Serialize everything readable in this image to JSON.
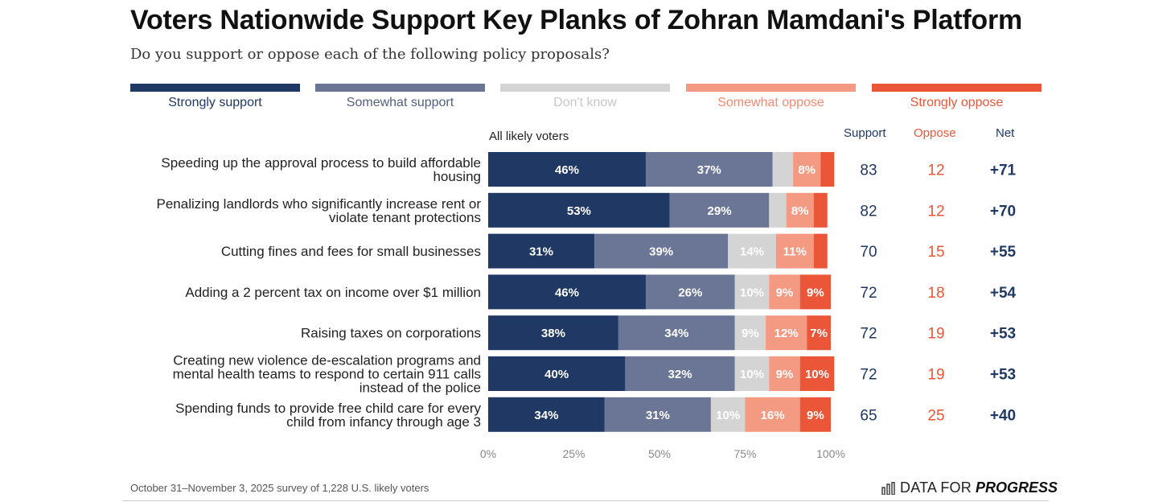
{
  "chart_data": {
    "type": "bar",
    "orientation": "horizontal",
    "stacked": true,
    "title": "Voters Nationwide Support Key Planks of Zohran Mamdani's Platform",
    "subtitle": "Do you support or oppose each of the following policy proposals?",
    "bar_group_label": "All likely voters",
    "series": [
      {
        "name": "Strongly support",
        "color": "#1f3864",
        "label_color": "#1f3864",
        "text_color": "#ffffff",
        "values": [
          46,
          53,
          31,
          46,
          38,
          40,
          34
        ],
        "labels": [
          "46%",
          "53%",
          "31%",
          "46%",
          "38%",
          "40%",
          "34%"
        ]
      },
      {
        "name": "Somewhat support",
        "color": "#6b7696",
        "label_color": "#55607f",
        "text_color": "#ffffff",
        "values": [
          37,
          29,
          39,
          26,
          34,
          32,
          31
        ],
        "labels": [
          "37%",
          "29%",
          "39%",
          "26%",
          "34%",
          "32%",
          "31%"
        ]
      },
      {
        "name": "Don't know",
        "color": "#d4d4d4",
        "label_color": "#c8c8c8",
        "text_color": "#ffffff",
        "values": [
          6,
          5,
          14,
          10,
          9,
          10,
          10
        ],
        "labels": [
          "",
          "",
          "14%",
          "10%",
          "9%",
          "10%",
          "10%"
        ]
      },
      {
        "name": "Somewhat oppose",
        "color": "#f59a82",
        "label_color": "#f4896f",
        "text_color": "#ffffff",
        "values": [
          8,
          8,
          11,
          9,
          12,
          9,
          16
        ],
        "labels": [
          "8%",
          "8%",
          "11%",
          "9%",
          "12%",
          "9%",
          "16%"
        ]
      },
      {
        "name": "Strongly oppose",
        "color": "#ec5638",
        "label_color": "#ec5638",
        "text_color": "#ffffff",
        "values": [
          4,
          4,
          4,
          9,
          7,
          10,
          9
        ],
        "labels": [
          "",
          "",
          "",
          "9%",
          "7%",
          "10%",
          "9%"
        ]
      }
    ],
    "categories": [
      [
        "Speeding up the approval process to build affordable",
        "housing"
      ],
      [
        "Penalizing landlords who significantly increase rent or",
        "violate tenant protections"
      ],
      [
        "Cutting fines and fees for small businesses"
      ],
      [
        "Adding a 2 percent tax on income over $1 million"
      ],
      [
        "Raising taxes on corporations"
      ],
      [
        "Creating new violence de-escalation programs and",
        "mental health teams to respond to certain 911 calls",
        "instead of the police"
      ],
      [
        "Spending funds to provide free child care for every",
        "child from infancy through age 3"
      ]
    ],
    "summary_columns": [
      {
        "header": "Support",
        "color": "#1f3864",
        "bold": false,
        "values": [
          "83",
          "82",
          "70",
          "72",
          "72",
          "72",
          "65"
        ]
      },
      {
        "header": "Oppose",
        "color": "#ec5638",
        "bold": false,
        "values": [
          "12",
          "12",
          "15",
          "18",
          "19",
          "19",
          "25"
        ]
      },
      {
        "header": "Net",
        "color": "#1f3864",
        "bold": true,
        "values": [
          "+71",
          "+70",
          "+55",
          "+54",
          "+53",
          "+53",
          "+40"
        ]
      }
    ],
    "x_ticks": [
      "0%",
      "25%",
      "50%",
      "75%",
      "100%"
    ],
    "xlim": [
      0,
      100
    ],
    "grid": false
  },
  "footer": {
    "note": "October 31–November 3, 2025 survey of 1,228 U.S. likely voters",
    "logo_part1": "DATA FOR",
    "logo_part2": "PROGRESS"
  }
}
